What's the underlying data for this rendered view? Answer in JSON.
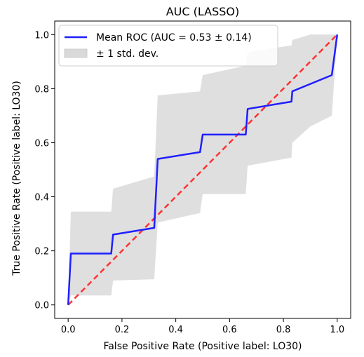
{
  "chart_data": {
    "type": "line",
    "title": "AUC (LASSO)",
    "xlabel": "False Positive Rate (Positive label: LO30)",
    "ylabel": "True Positive Rate (Positive label: LO30)",
    "xlim": [
      -0.05,
      1.05
    ],
    "ylim": [
      -0.05,
      1.05
    ],
    "xticks": [
      0.0,
      0.2,
      0.4,
      0.6,
      0.8,
      1.0
    ],
    "yticks": [
      0.0,
      0.2,
      0.4,
      0.6,
      0.8,
      1.0
    ],
    "xtick_labels": [
      "0.0",
      "0.2",
      "0.4",
      "0.6",
      "0.8",
      "1.0"
    ],
    "ytick_labels": [
      "0.0",
      "0.2",
      "0.4",
      "0.6",
      "0.8",
      "1.0"
    ],
    "grid": false,
    "legend_position": "top-left",
    "colors": {
      "mean_roc": "#1f1fff",
      "chance": "#ff3333",
      "band": "#d9d9d9"
    },
    "series": [
      {
        "name": "Mean ROC (AUC = 0.53 ± 0.14)",
        "style": "solid",
        "x": [
          0.0,
          0.01,
          0.16,
          0.167,
          0.32,
          0.333,
          0.49,
          0.5,
          0.66,
          0.667,
          0.83,
          0.833,
          0.98,
          1.0
        ],
        "y": [
          0.0,
          0.19,
          0.19,
          0.26,
          0.285,
          0.54,
          0.565,
          0.63,
          0.63,
          0.725,
          0.752,
          0.79,
          0.85,
          1.0
        ]
      },
      {
        "name": "± 1 std. dev.",
        "style": "band",
        "x": [
          0.0,
          0.01,
          0.16,
          0.167,
          0.32,
          0.333,
          0.49,
          0.5,
          0.66,
          0.667,
          0.83,
          0.833,
          0.9,
          0.98,
          1.0
        ],
        "upper": [
          0.0,
          0.345,
          0.345,
          0.43,
          0.475,
          0.775,
          0.79,
          0.85,
          0.885,
          0.935,
          0.96,
          0.98,
          1.0,
          1.0,
          1.0
        ],
        "lower": [
          0.0,
          0.035,
          0.035,
          0.09,
          0.095,
          0.305,
          0.34,
          0.41,
          0.41,
          0.515,
          0.545,
          0.6,
          0.66,
          0.7,
          1.0
        ]
      },
      {
        "name": "",
        "style": "dashed",
        "x": [
          0.0,
          1.0
        ],
        "y": [
          0.0,
          1.0
        ]
      }
    ]
  }
}
